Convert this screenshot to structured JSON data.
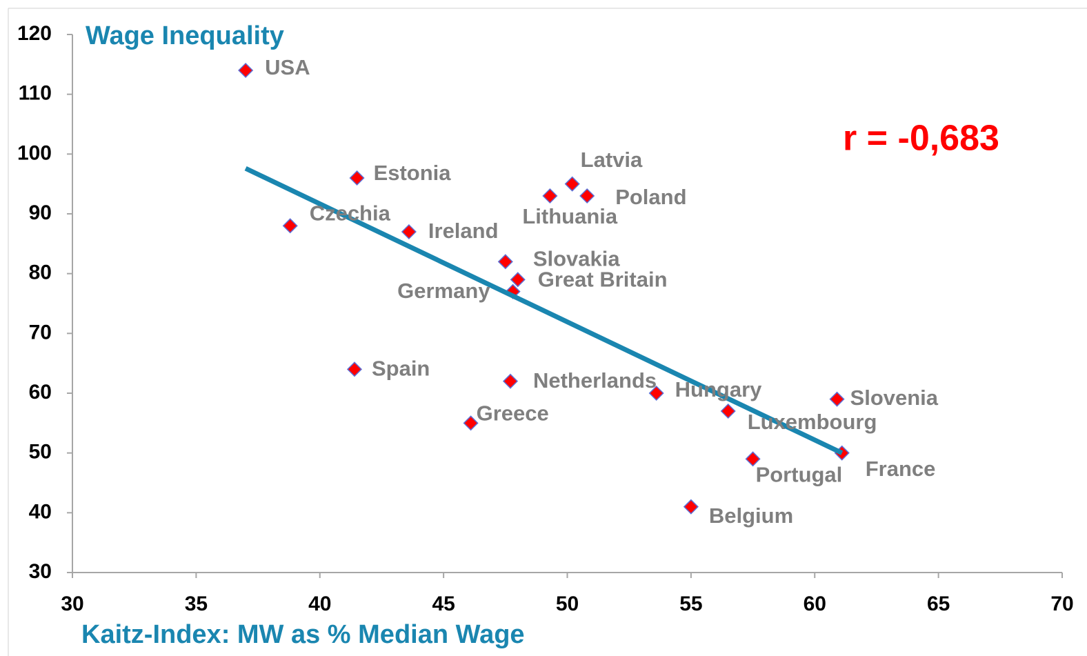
{
  "chart_data": {
    "type": "scatter",
    "title": "Wage Inequality",
    "x_label": "Kaitz-Index: MW as %  Median Wage",
    "annotation": "r = -0,683",
    "annotation_color": "#ff0000",
    "labels": [
      "USA",
      "Estonia",
      "Czechia",
      "Ireland",
      "Latvia",
      "Lithuania",
      "Poland",
      "Slovakia",
      "Great Britain",
      "Germany",
      "Spain",
      "Netherlands",
      "Greece",
      "Hungary",
      "Luxembourg",
      "Slovenia",
      "Portugal",
      "France",
      "Belgium"
    ],
    "x": [
      37,
      41.5,
      38.8,
      43.6,
      50.2,
      49.3,
      50.8,
      47.5,
      48,
      47.8,
      41.4,
      47.7,
      46.1,
      53.6,
      56.5,
      60.9,
      57.5,
      61.1,
      55
    ],
    "values": [
      114,
      96,
      88,
      87,
      95,
      93,
      93,
      82,
      79,
      77,
      64,
      62,
      55,
      60,
      57,
      59,
      49,
      50,
      41
    ],
    "color": "#ff0000",
    "label_color": "#7f7f7f",
    "trendline": {
      "x": [
        37,
        61.1
      ],
      "y": [
        97.6,
        50
      ],
      "color": "#1a86b0"
    },
    "xlim": [
      30,
      70
    ],
    "xticks": [
      30,
      35,
      40,
      45,
      50,
      55,
      60,
      65,
      70
    ],
    "ylim": [
      30,
      120
    ],
    "yticks": [
      30,
      40,
      50,
      60,
      70,
      80,
      90,
      100,
      110,
      120
    ],
    "grid": false
  }
}
